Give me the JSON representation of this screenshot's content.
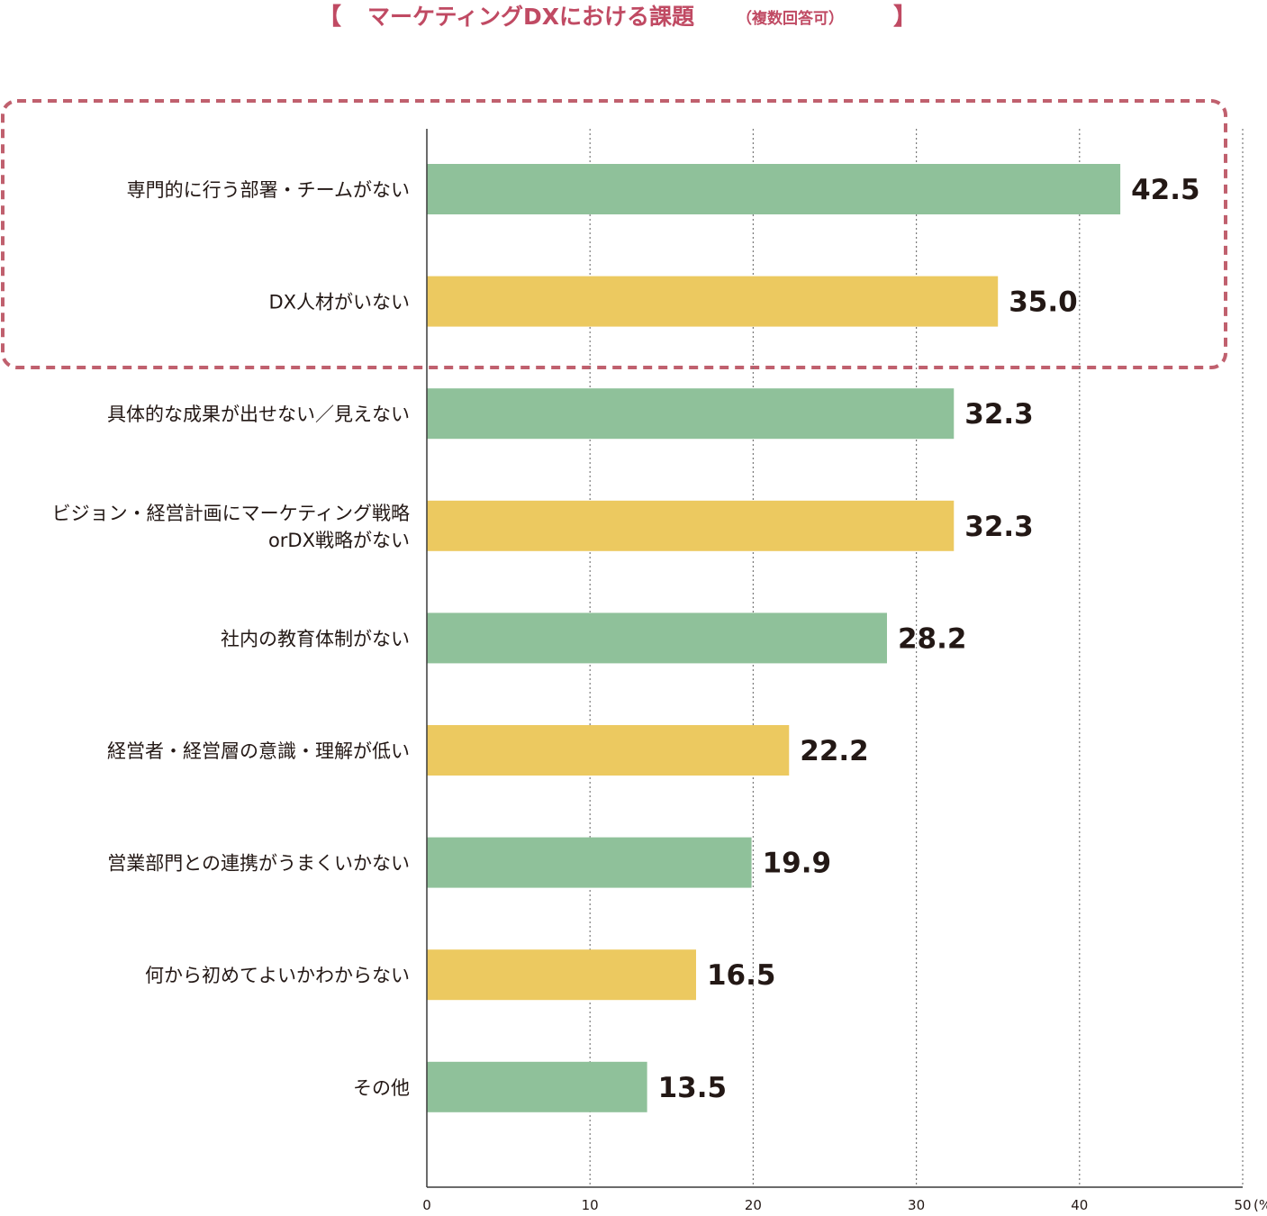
{
  "chart_data": {
    "type": "bar",
    "orientation": "horizontal",
    "title": "マーケティングDXにおける課題",
    "subtitle": "（複数回答可）",
    "title_brackets": [
      "【",
      "】"
    ],
    "categories": [
      [
        "専門的に行う部署・チームがない"
      ],
      [
        "DX人材がいない"
      ],
      [
        "具体的な成果が出せない／見えない"
      ],
      [
        "ビジョン・経営計画にマーケティング戦略",
        "orDX戦略がない"
      ],
      [
        "社内の教育体制がない"
      ],
      [
        "経営者・経営層の意識・理解が低い"
      ],
      [
        "営業部門との連携がうまくいかない"
      ],
      [
        "何から初めてよいかわからない"
      ],
      [
        "その他"
      ]
    ],
    "values": [
      42.5,
      35.0,
      32.3,
      32.3,
      28.2,
      22.2,
      19.9,
      16.5,
      13.5
    ],
    "value_labels": [
      "42.5",
      "35.0",
      "32.3",
      "32.3",
      "28.2",
      "22.2",
      "19.9",
      "16.5",
      "13.5"
    ],
    "xlim": [
      0,
      50
    ],
    "x_ticks": [
      0,
      10,
      20,
      30,
      40,
      50
    ],
    "x_tick_labels": [
      "0",
      "10",
      "20",
      "30",
      "40",
      "50"
    ],
    "unit_label": "(%)",
    "grid": "vertical dotted",
    "highlight": {
      "style": "dashed rounded box",
      "category_indices": [
        0,
        1
      ]
    },
    "colors": {
      "bar_green": "#8fc19a",
      "bar_yellow": "#ecc960",
      "title": "#c04a63",
      "highlight_border": "#c0606e",
      "axis": "#3a3a3a",
      "grid": "#7a7a7a",
      "text": "#231815"
    },
    "bar_color_pattern": [
      "bar_green",
      "bar_yellow"
    ]
  }
}
